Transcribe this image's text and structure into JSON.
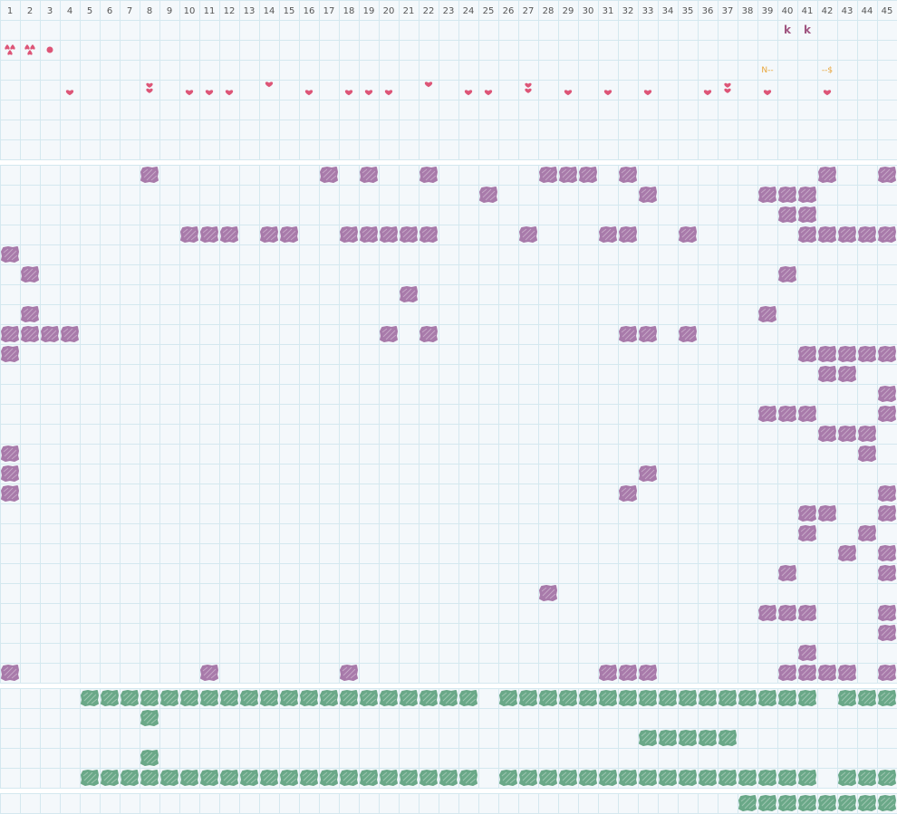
{
  "columns": [
    "1",
    "2",
    "3",
    "4",
    "5",
    "6",
    "7",
    "8",
    "9",
    "10",
    "11",
    "12",
    "13",
    "14",
    "15",
    "16",
    "17",
    "18",
    "19",
    "20",
    "21",
    "22",
    "23",
    "24",
    "25",
    "26",
    "27",
    "28",
    "29",
    "30",
    "31",
    "32",
    "33",
    "34",
    "35",
    "36",
    "37",
    "38",
    "39",
    "40",
    "41",
    "42",
    "43",
    "44",
    "45"
  ],
  "colors": {
    "background": "#f4f8fb",
    "grid": "#d4e8ef",
    "separator": "#ffffff",
    "header_text": "#555555",
    "heart": "#dd5577",
    "k_letter": "#a05580",
    "orange_text": "#e8a53a",
    "purple_blob": "#a87aaa",
    "green_blob": "#6aa888"
  },
  "top_section": {
    "spades": [
      {
        "col": 1,
        "row": 2,
        "glyph": "♠♠"
      },
      {
        "col": 2,
        "row": 2,
        "glyph": "♠♠"
      }
    ],
    "dots": [
      {
        "col": 3,
        "row": 2
      }
    ],
    "k_marks": [
      {
        "col": 40,
        "row": 1,
        "text": "k"
      },
      {
        "col": 41,
        "row": 1,
        "text": "k"
      }
    ],
    "orange_marks": [
      {
        "col": 39,
        "row": 3,
        "text": "N--"
      },
      {
        "col": 42,
        "row": 3,
        "text": "--$"
      }
    ],
    "hearts_single": [
      4,
      10,
      11,
      12,
      16,
      18,
      19,
      20,
      24,
      25,
      29,
      31,
      33,
      36,
      39,
      42
    ],
    "hearts_high": [
      14,
      22
    ],
    "hearts_double": [
      8,
      27,
      37
    ]
  },
  "middle_rows": [
    [
      8,
      17,
      19,
      22,
      28,
      29,
      30,
      32,
      42,
      45
    ],
    [
      25,
      33,
      39,
      40,
      41
    ],
    [
      40,
      41
    ],
    [
      10,
      11,
      12,
      14,
      15,
      18,
      19,
      20,
      21,
      22,
      27,
      31,
      32,
      35,
      41,
      42,
      43,
      44,
      45
    ],
    [
      1
    ],
    [
      2,
      40
    ],
    [
      21
    ],
    [
      2,
      39
    ],
    [
      1,
      2,
      3,
      4,
      20,
      22,
      32,
      33,
      35
    ],
    [
      1,
      41,
      42,
      43,
      44,
      45
    ],
    [
      42,
      43
    ],
    [
      45
    ],
    [
      39,
      40,
      41,
      45
    ],
    [
      42,
      43,
      44
    ],
    [
      1,
      44
    ],
    [
      1,
      33
    ],
    [
      1,
      32,
      45
    ],
    [
      41,
      42,
      45
    ],
    [
      41,
      44
    ],
    [
      43,
      45
    ],
    [
      40,
      45
    ],
    [
      28
    ],
    [
      39,
      40,
      41,
      45
    ],
    [
      45
    ],
    [
      41
    ],
    [
      1,
      11,
      18,
      31,
      32,
      33,
      40,
      41,
      42,
      43,
      45
    ]
  ],
  "lower_rows": [
    [
      5,
      6,
      7,
      8,
      9,
      10,
      11,
      12,
      13,
      14,
      15,
      16,
      17,
      18,
      19,
      20,
      21,
      22,
      23,
      24,
      26,
      27,
      28,
      29,
      30,
      31,
      32,
      33,
      34,
      35,
      36,
      37,
      38,
      39,
      40,
      41,
      43,
      44,
      45
    ],
    [
      8
    ],
    [
      33,
      34,
      35,
      36,
      37
    ],
    [
      8
    ],
    [
      5,
      6,
      7,
      8,
      9,
      10,
      11,
      12,
      13,
      14,
      15,
      16,
      17,
      18,
      19,
      20,
      21,
      22,
      23,
      24,
      26,
      27,
      28,
      29,
      30,
      31,
      32,
      33,
      34,
      35,
      36,
      37,
      38,
      39,
      40,
      41,
      43,
      44,
      45
    ]
  ],
  "bottom_row": [
    38,
    39,
    40,
    41,
    42,
    43,
    44,
    45
  ]
}
